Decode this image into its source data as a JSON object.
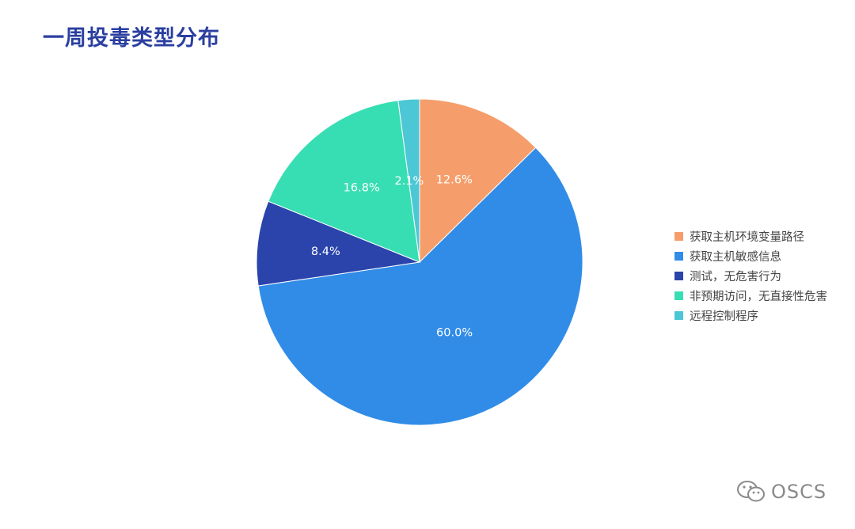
{
  "title": "一周投毒类型分布",
  "watermark": {
    "text": "OSCS",
    "icon": "wechat-icon"
  },
  "chart_data": {
    "type": "pie",
    "title": "一周投毒类型分布",
    "start_angle_deg": 0,
    "direction": "clockwise",
    "legend_position": "right",
    "slices": [
      {
        "label": "获取主机环境变量路径",
        "value": 12.6,
        "display": "12.6%",
        "color": "#f59e6b"
      },
      {
        "label": "获取主机敏感信息",
        "value": 60.0,
        "display": "60.0%",
        "color": "#318ce7"
      },
      {
        "label": "测试，无危害行为",
        "value": 8.4,
        "display": "8.4%",
        "color": "#2a44ac"
      },
      {
        "label": "非预期访问，无直接性危害",
        "value": 16.8,
        "display": "16.8%",
        "color": "#38deb3"
      },
      {
        "label": "远程控制程序",
        "value": 2.1,
        "display": "2.1%",
        "color": "#4cc7d5"
      }
    ]
  }
}
